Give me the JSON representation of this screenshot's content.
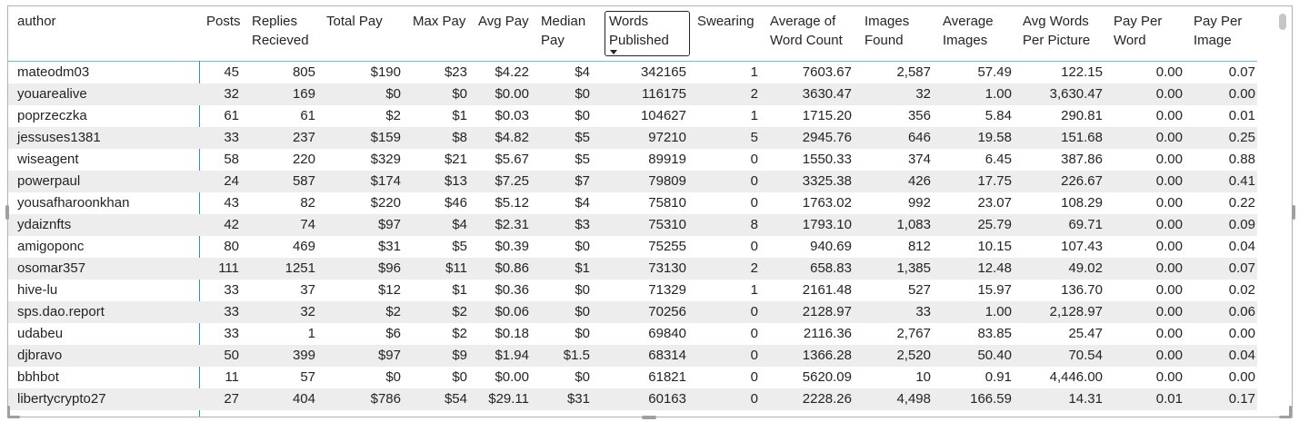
{
  "table": {
    "columns": [
      {
        "key": "author",
        "label": "author"
      },
      {
        "key": "posts",
        "label": "Posts"
      },
      {
        "key": "replies",
        "label": "Replies\nRecieved"
      },
      {
        "key": "total_pay",
        "label": "Total Pay"
      },
      {
        "key": "max_pay",
        "label": "Max Pay"
      },
      {
        "key": "avg_pay",
        "label": "Avg Pay"
      },
      {
        "key": "median_pay",
        "label": "Median\nPay"
      },
      {
        "key": "words",
        "label": "Words\nPublished",
        "sorted": "desc"
      },
      {
        "key": "swearing",
        "label": "Swearing"
      },
      {
        "key": "avg_word_count",
        "label": "Average of\nWord Count"
      },
      {
        "key": "images",
        "label": "Images\nFound"
      },
      {
        "key": "avg_images",
        "label": "Average\nImages"
      },
      {
        "key": "avg_words_pic",
        "label": "Avg Words\nPer Picture"
      },
      {
        "key": "pay_word",
        "label": "Pay Per\nWord"
      },
      {
        "key": "pay_image",
        "label": "Pay Per\nImage"
      }
    ],
    "rows": [
      [
        "mateodm03",
        "45",
        "805",
        "$190",
        "$23",
        "$4.22",
        "$4",
        "342165",
        "1",
        "7603.67",
        "2,587",
        "57.49",
        "122.15",
        "0.00",
        "0.07"
      ],
      [
        "youarealive",
        "32",
        "169",
        "$0",
        "$0",
        "$0.00",
        "$0",
        "116175",
        "2",
        "3630.47",
        "32",
        "1.00",
        "3,630.47",
        "0.00",
        "0.00"
      ],
      [
        "poprzeczka",
        "61",
        "61",
        "$2",
        "$1",
        "$0.03",
        "$0",
        "104627",
        "1",
        "1715.20",
        "356",
        "5.84",
        "290.81",
        "0.00",
        "0.01"
      ],
      [
        "jessuses1381",
        "33",
        "237",
        "$159",
        "$8",
        "$4.82",
        "$5",
        "97210",
        "5",
        "2945.76",
        "646",
        "19.58",
        "151.68",
        "0.00",
        "0.25"
      ],
      [
        "wiseagent",
        "58",
        "220",
        "$329",
        "$21",
        "$5.67",
        "$5",
        "89919",
        "0",
        "1550.33",
        "374",
        "6.45",
        "387.86",
        "0.00",
        "0.88"
      ],
      [
        "powerpaul",
        "24",
        "587",
        "$174",
        "$13",
        "$7.25",
        "$7",
        "79809",
        "0",
        "3325.38",
        "426",
        "17.75",
        "226.67",
        "0.00",
        "0.41"
      ],
      [
        "yousafharoonkhan",
        "43",
        "82",
        "$220",
        "$46",
        "$5.12",
        "$4",
        "75810",
        "0",
        "1763.02",
        "992",
        "23.07",
        "108.29",
        "0.00",
        "0.22"
      ],
      [
        "ydaiznfts",
        "42",
        "74",
        "$97",
        "$4",
        "$2.31",
        "$3",
        "75310",
        "8",
        "1793.10",
        "1,083",
        "25.79",
        "69.71",
        "0.00",
        "0.09"
      ],
      [
        "amigoponc",
        "80",
        "469",
        "$31",
        "$5",
        "$0.39",
        "$0",
        "75255",
        "0",
        "940.69",
        "812",
        "10.15",
        "107.43",
        "0.00",
        "0.04"
      ],
      [
        "osomar357",
        "111",
        "1251",
        "$96",
        "$11",
        "$0.86",
        "$1",
        "73130",
        "2",
        "658.83",
        "1,385",
        "12.48",
        "49.02",
        "0.00",
        "0.07"
      ],
      [
        "hive-lu",
        "33",
        "37",
        "$12",
        "$1",
        "$0.36",
        "$0",
        "71329",
        "1",
        "2161.48",
        "527",
        "15.97",
        "136.70",
        "0.00",
        "0.02"
      ],
      [
        "sps.dao.report",
        "33",
        "32",
        "$2",
        "$2",
        "$0.06",
        "$0",
        "70256",
        "0",
        "2128.97",
        "33",
        "1.00",
        "2,128.97",
        "0.00",
        "0.06"
      ],
      [
        "udabeu",
        "33",
        "1",
        "$6",
        "$2",
        "$0.18",
        "$0",
        "69840",
        "0",
        "2116.36",
        "2,767",
        "83.85",
        "25.47",
        "0.00",
        "0.00"
      ],
      [
        "djbravo",
        "50",
        "399",
        "$97",
        "$9",
        "$1.94",
        "$1.5",
        "68314",
        "0",
        "1366.28",
        "2,520",
        "50.40",
        "70.54",
        "0.00",
        "0.04"
      ],
      [
        "bbhbot",
        "11",
        "57",
        "$0",
        "$0",
        "$0.00",
        "$0",
        "61821",
        "0",
        "5620.09",
        "10",
        "0.91",
        "4,446.00",
        "0.00",
        "0.00"
      ],
      [
        "libertycrypto27",
        "27",
        "404",
        "$786",
        "$54",
        "$29.11",
        "$31",
        "60163",
        "0",
        "2228.26",
        "4,498",
        "166.59",
        "14.31",
        "0.01",
        "0.17"
      ]
    ]
  }
}
